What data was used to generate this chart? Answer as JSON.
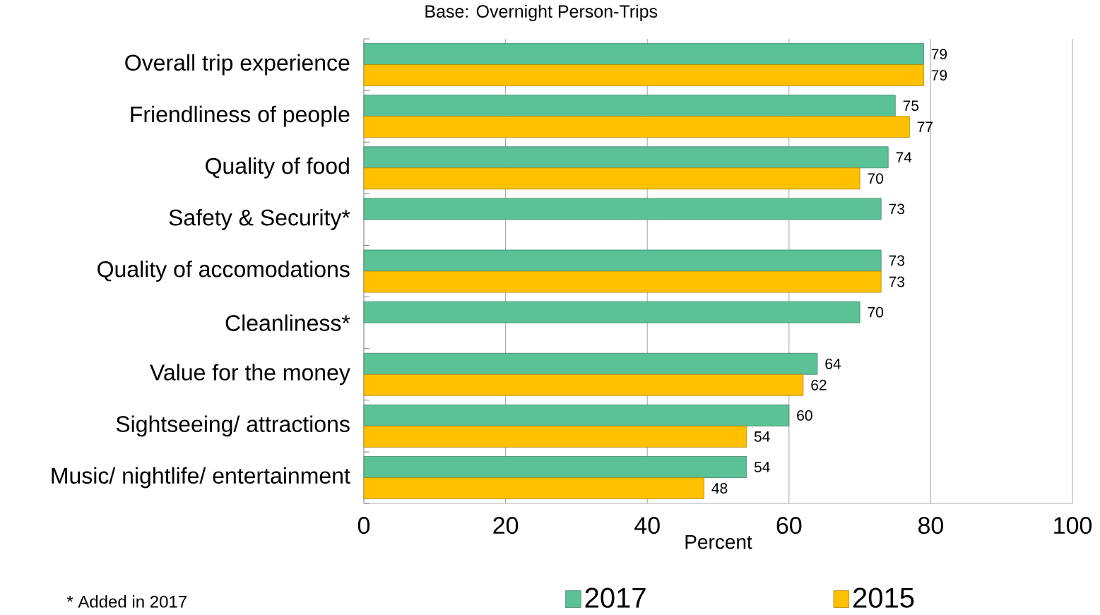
{
  "chart_data": {
    "type": "bar",
    "orientation": "horizontal",
    "title": "Base: Overnight Person-Trips",
    "xlabel": "Percent",
    "categories": [
      "Overall trip experience",
      "Friendliness of people",
      "Quality of food",
      "Safety & Security*",
      "Quality of accomodations",
      "Cleanliness*",
      "Value for the money",
      "Sightseeing/ attractions",
      "Music/ nightlife/ entertainment"
    ],
    "series": [
      {
        "name": "2017",
        "color": "#5bc196",
        "values": [
          79,
          75,
          74,
          73,
          73,
          70,
          64,
          60,
          54
        ]
      },
      {
        "name": "2015",
        "color": "#ffc000",
        "values": [
          79,
          77,
          70,
          null,
          73,
          null,
          62,
          54,
          48
        ]
      }
    ],
    "xlim": [
      0,
      100
    ],
    "xticks": [
      0,
      20,
      40,
      60,
      80,
      100
    ],
    "grid": "x",
    "legend": "bottom",
    "data_labels": true,
    "annotations": [
      "* Added in 2017"
    ]
  }
}
